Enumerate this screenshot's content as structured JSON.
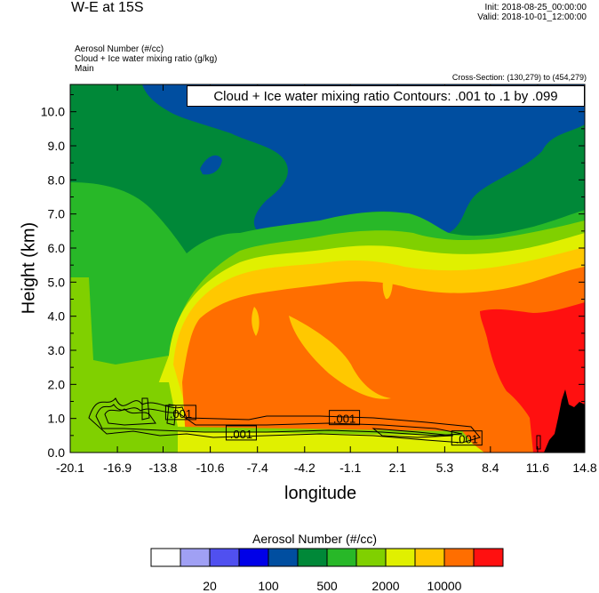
{
  "header": {
    "title": "W-E at 15S",
    "init": "Init: 2018-08-25_00:00:00",
    "valid": "Valid: 2018-10-01_12:00:00",
    "sub1": "Aerosol Number   (#/cc)",
    "sub2": "Cloud + Ice water mixing ratio   (g/kg)",
    "sub3": "Main",
    "cross_section": "Cross-Section: (130,279) to (454,279)",
    "contour_label": "Cloud + Ice water mixing ratio Contours: .001 to .1 by .099"
  },
  "colorbar": {
    "title": "Aerosol Number  (#/cc)",
    "colors": [
      "#ffffff",
      "#a0a0f4",
      "#5050f0",
      "#0000e8",
      "#004ea0",
      "#008838",
      "#28b828",
      "#80d000",
      "#e0f000",
      "#ffc800",
      "#ff6e00",
      "#ff1010"
    ],
    "labels": [
      "20",
      "100",
      "500",
      "2000",
      "10000"
    ]
  },
  "chart_data": {
    "type": "heatmap",
    "xlabel": "longitude",
    "ylabel": "Height (km)",
    "x_ticks": [
      "-20.1",
      "-16.9",
      "-13.8",
      "-10.6",
      "-7.4",
      "-4.2",
      "-1.1",
      "2.1",
      "5.3",
      "8.4",
      "11.6",
      "14.8"
    ],
    "y_ticks": [
      "0.0",
      "1.0",
      "2.0",
      "3.0",
      "4.0",
      "5.0",
      "6.0",
      "7.0",
      "8.0",
      "9.0",
      "10.0"
    ],
    "xlim": [
      -20.1,
      14.8
    ],
    "ylim": [
      0,
      10.8
    ],
    "contour_labels": [
      {
        "text": ".001",
        "lon": -12.6,
        "height": 1.15
      },
      {
        "text": ".001",
        "lon": -8.5,
        "height": 0.55
      },
      {
        "text": ".001",
        "lon": -1.5,
        "height": 1.0
      },
      {
        "text": ".001",
        "lon": 6.8,
        "height": 0.4
      }
    ],
    "colors": {
      "green_dark": "#008838",
      "blue": "#004ea0",
      "green": "#28b828",
      "lime": "#80d000",
      "yellow": "#e0f000",
      "gold": "#ffc800",
      "orange": "#ff6e00",
      "red": "#ff1010",
      "terrain": "#000000"
    }
  }
}
